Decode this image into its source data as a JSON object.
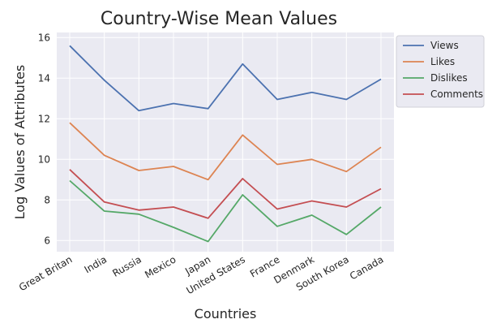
{
  "chart_data": {
    "type": "line",
    "title": "Country-Wise Mean Values",
    "xlabel": "Countries",
    "ylabel": "Log Values of Attributes",
    "categories": [
      "Great Britan",
      "India",
      "Russia",
      "Mexico",
      "Japan",
      "United States",
      "France",
      "Denmark",
      "South Korea",
      "Canada"
    ],
    "ylim": [
      5.45,
      16.25
    ],
    "yticks": [
      6,
      8,
      10,
      12,
      14,
      16
    ],
    "grid": true,
    "legend_position": "upper right, outside plot",
    "series": [
      {
        "name": "Views",
        "color": "#4c72b0",
        "values": [
          15.6,
          13.9,
          12.4,
          12.75,
          12.5,
          14.7,
          12.95,
          13.3,
          12.95,
          13.95
        ]
      },
      {
        "name": "Likes",
        "color": "#dd8452",
        "values": [
          11.8,
          10.2,
          9.45,
          9.65,
          9.0,
          11.2,
          9.75,
          10.0,
          9.4,
          10.6
        ]
      },
      {
        "name": "Dislikes",
        "color": "#55a868",
        "values": [
          8.95,
          7.45,
          7.3,
          6.65,
          5.95,
          8.25,
          6.7,
          7.25,
          6.3,
          7.65
        ]
      },
      {
        "name": "Comments",
        "color": "#c44e52",
        "values": [
          9.5,
          7.9,
          7.5,
          7.65,
          7.1,
          9.05,
          7.55,
          7.95,
          7.65,
          8.55
        ]
      }
    ]
  }
}
